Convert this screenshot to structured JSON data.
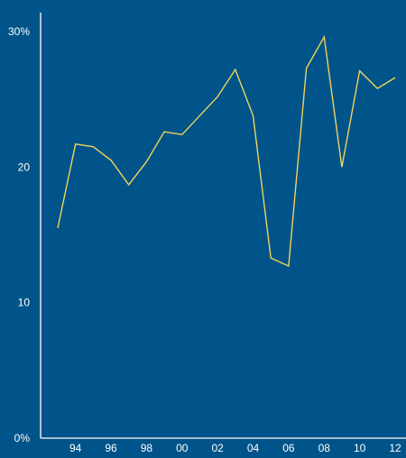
{
  "colors": {
    "background": "#005489",
    "axis": "#ffffff",
    "text": "#ffffff",
    "line": "#f2d25c"
  },
  "chart_data": {
    "type": "line",
    "title": "",
    "xlabel": "",
    "ylabel": "",
    "x": [
      "1993",
      "1994",
      "1995",
      "1996",
      "1997",
      "1998",
      "1999",
      "2000",
      "2001",
      "2002",
      "2003",
      "2004",
      "2005",
      "2006",
      "2007",
      "2008",
      "2009",
      "2010",
      "2011",
      "2012"
    ],
    "series": [
      {
        "values": [
          15.5,
          21.7,
          21.5,
          20.5,
          18.7,
          20.4,
          22.6,
          22.4,
          23.8,
          25.2,
          27.2,
          23.8,
          13.3,
          12.7,
          27.3,
          29.6,
          20.0,
          27.1,
          25.8,
          26.6
        ]
      }
    ],
    "xticks": [
      "94",
      "96",
      "98",
      "00",
      "02",
      "04",
      "06",
      "08",
      "10",
      "12"
    ],
    "yticks": [
      0,
      10,
      20,
      30
    ],
    "ytick_labels": [
      "0%",
      "10",
      "20",
      "30%"
    ],
    "ylim": [
      0,
      30
    ],
    "grid": false,
    "legend": "none"
  }
}
